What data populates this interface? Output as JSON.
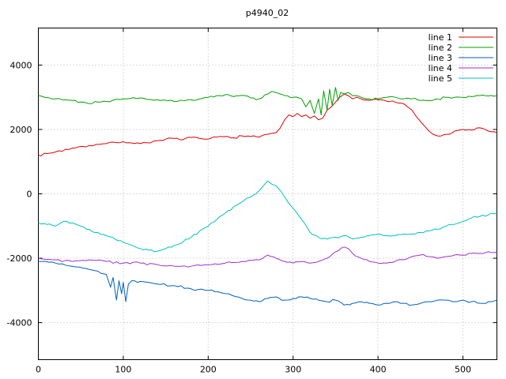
{
  "chart_data": {
    "type": "line",
    "title": "p4940_02",
    "xlabel": "",
    "ylabel": "",
    "xlim": [
      0,
      540
    ],
    "ylim": [
      -5150,
      5150
    ],
    "x_ticks": [
      0,
      100,
      200,
      300,
      400,
      500
    ],
    "y_ticks": [
      -4000,
      -2000,
      0,
      2000,
      4000
    ],
    "grid": true,
    "legend_position": "top-right",
    "background": "#ffffff",
    "grid_color": "#b4b4b4",
    "border_color": "#000000",
    "series": [
      {
        "name": "line 1",
        "color": "#dd0000",
        "noise": 40,
        "points": [
          [
            0,
            1200
          ],
          [
            10,
            1250
          ],
          [
            20,
            1300
          ],
          [
            40,
            1420
          ],
          [
            60,
            1500
          ],
          [
            80,
            1560
          ],
          [
            100,
            1620
          ],
          [
            110,
            1580
          ],
          [
            120,
            1560
          ],
          [
            140,
            1650
          ],
          [
            150,
            1700
          ],
          [
            160,
            1720
          ],
          [
            170,
            1680
          ],
          [
            180,
            1750
          ],
          [
            190,
            1720
          ],
          [
            200,
            1700
          ],
          [
            210,
            1760
          ],
          [
            220,
            1780
          ],
          [
            230,
            1740
          ],
          [
            240,
            1800
          ],
          [
            250,
            1780
          ],
          [
            260,
            1760
          ],
          [
            270,
            1850
          ],
          [
            280,
            1900
          ],
          [
            285,
            2050
          ],
          [
            290,
            2300
          ],
          [
            295,
            2450
          ],
          [
            300,
            2400
          ],
          [
            305,
            2500
          ],
          [
            310,
            2400
          ],
          [
            315,
            2450
          ],
          [
            320,
            2350
          ],
          [
            325,
            2420
          ],
          [
            330,
            2300
          ],
          [
            335,
            2350
          ],
          [
            340,
            2600
          ],
          [
            345,
            2700
          ],
          [
            350,
            2850
          ],
          [
            355,
            3000
          ],
          [
            360,
            3100
          ],
          [
            365,
            3050
          ],
          [
            370,
            2950
          ],
          [
            375,
            3000
          ],
          [
            380,
            2950
          ],
          [
            390,
            2900
          ],
          [
            400,
            2920
          ],
          [
            410,
            2880
          ],
          [
            420,
            2850
          ],
          [
            430,
            2800
          ],
          [
            435,
            2700
          ],
          [
            440,
            2600
          ],
          [
            445,
            2400
          ],
          [
            450,
            2250
          ],
          [
            455,
            2100
          ],
          [
            460,
            1950
          ],
          [
            465,
            1850
          ],
          [
            470,
            1800
          ],
          [
            480,
            1850
          ],
          [
            490,
            1950
          ],
          [
            500,
            2000
          ],
          [
            510,
            1980
          ],
          [
            520,
            2050
          ],
          [
            530,
            1950
          ],
          [
            540,
            1900
          ]
        ]
      },
      {
        "name": "line 2",
        "color": "#00a000",
        "noise": 45,
        "points": [
          [
            0,
            3050
          ],
          [
            20,
            2950
          ],
          [
            40,
            2900
          ],
          [
            50,
            2850
          ],
          [
            60,
            2800
          ],
          [
            70,
            2850
          ],
          [
            80,
            2870
          ],
          [
            100,
            2950
          ],
          [
            120,
            2980
          ],
          [
            140,
            2920
          ],
          [
            160,
            2870
          ],
          [
            180,
            2920
          ],
          [
            200,
            3000
          ],
          [
            210,
            3050
          ],
          [
            220,
            3080
          ],
          [
            230,
            3020
          ],
          [
            240,
            3060
          ],
          [
            250,
            2980
          ],
          [
            260,
            2950
          ],
          [
            270,
            3100
          ],
          [
            275,
            3180
          ],
          [
            280,
            3150
          ],
          [
            290,
            3050
          ],
          [
            300,
            3000
          ],
          [
            310,
            2950
          ],
          [
            315,
            2700
          ],
          [
            320,
            2900
          ],
          [
            325,
            2500
          ],
          [
            330,
            2950
          ],
          [
            333,
            2450
          ],
          [
            336,
            3200
          ],
          [
            340,
            2600
          ],
          [
            343,
            3250
          ],
          [
            346,
            2750
          ],
          [
            350,
            3300
          ],
          [
            353,
            2900
          ],
          [
            356,
            3150
          ],
          [
            360,
            3100
          ],
          [
            365,
            3150
          ],
          [
            370,
            3050
          ],
          [
            380,
            3000
          ],
          [
            390,
            2950
          ],
          [
            400,
            2950
          ],
          [
            410,
            3000
          ],
          [
            420,
            3000
          ],
          [
            430,
            2950
          ],
          [
            440,
            2950
          ],
          [
            450,
            2900
          ],
          [
            460,
            2900
          ],
          [
            470,
            2950
          ],
          [
            480,
            3000
          ],
          [
            490,
            3000
          ],
          [
            500,
            3000
          ],
          [
            510,
            3020
          ],
          [
            520,
            3050
          ],
          [
            530,
            3040
          ],
          [
            540,
            3050
          ]
        ]
      },
      {
        "name": "line 3",
        "color": "#0060c0",
        "noise": 45,
        "points": [
          [
            0,
            -2100
          ],
          [
            20,
            -2150
          ],
          [
            40,
            -2250
          ],
          [
            60,
            -2350
          ],
          [
            70,
            -2400
          ],
          [
            80,
            -2500
          ],
          [
            85,
            -2900
          ],
          [
            88,
            -2600
          ],
          [
            92,
            -3300
          ],
          [
            95,
            -2700
          ],
          [
            98,
            -3100
          ],
          [
            100,
            -2750
          ],
          [
            103,
            -3350
          ],
          [
            106,
            -2800
          ],
          [
            110,
            -2700
          ],
          [
            120,
            -2720
          ],
          [
            130,
            -2750
          ],
          [
            140,
            -2800
          ],
          [
            160,
            -2850
          ],
          [
            180,
            -2950
          ],
          [
            200,
            -3000
          ],
          [
            220,
            -3100
          ],
          [
            240,
            -3250
          ],
          [
            250,
            -3300
          ],
          [
            260,
            -3350
          ],
          [
            270,
            -3250
          ],
          [
            280,
            -3200
          ],
          [
            290,
            -3300
          ],
          [
            300,
            -3250
          ],
          [
            310,
            -3200
          ],
          [
            320,
            -3250
          ],
          [
            330,
            -3300
          ],
          [
            340,
            -3350
          ],
          [
            350,
            -3300
          ],
          [
            360,
            -3450
          ],
          [
            370,
            -3400
          ],
          [
            380,
            -3350
          ],
          [
            390,
            -3400
          ],
          [
            400,
            -3450
          ],
          [
            410,
            -3400
          ],
          [
            420,
            -3350
          ],
          [
            430,
            -3400
          ],
          [
            440,
            -3450
          ],
          [
            450,
            -3400
          ],
          [
            460,
            -3350
          ],
          [
            470,
            -3300
          ],
          [
            480,
            -3300
          ],
          [
            490,
            -3350
          ],
          [
            500,
            -3300
          ],
          [
            510,
            -3350
          ],
          [
            520,
            -3400
          ],
          [
            530,
            -3350
          ],
          [
            540,
            -3300
          ]
        ]
      },
      {
        "name": "line 4",
        "color": "#a030d0",
        "noise": 40,
        "points": [
          [
            0,
            -2000
          ],
          [
            20,
            -2050
          ],
          [
            40,
            -2100
          ],
          [
            60,
            -2050
          ],
          [
            80,
            -2100
          ],
          [
            100,
            -2150
          ],
          [
            120,
            -2150
          ],
          [
            140,
            -2200
          ],
          [
            160,
            -2250
          ],
          [
            180,
            -2250
          ],
          [
            200,
            -2200
          ],
          [
            220,
            -2150
          ],
          [
            240,
            -2100
          ],
          [
            260,
            -2050
          ],
          [
            270,
            -1900
          ],
          [
            280,
            -2000
          ],
          [
            290,
            -2100
          ],
          [
            300,
            -2150
          ],
          [
            310,
            -2100
          ],
          [
            320,
            -2150
          ],
          [
            330,
            -2100
          ],
          [
            340,
            -2000
          ],
          [
            350,
            -1800
          ],
          [
            360,
            -1650
          ],
          [
            365,
            -1700
          ],
          [
            370,
            -1850
          ],
          [
            380,
            -2000
          ],
          [
            390,
            -2100
          ],
          [
            400,
            -2150
          ],
          [
            410,
            -2150
          ],
          [
            420,
            -2100
          ],
          [
            430,
            -2050
          ],
          [
            440,
            -1950
          ],
          [
            450,
            -1900
          ],
          [
            460,
            -1950
          ],
          [
            470,
            -2000
          ],
          [
            480,
            -1950
          ],
          [
            490,
            -1900
          ],
          [
            500,
            -1900
          ],
          [
            510,
            -1850
          ],
          [
            520,
            -1850
          ],
          [
            530,
            -1800
          ],
          [
            540,
            -1800
          ]
        ]
      },
      {
        "name": "line 5",
        "color": "#00c0c0",
        "noise": 45,
        "points": [
          [
            0,
            -900
          ],
          [
            10,
            -950
          ],
          [
            20,
            -1000
          ],
          [
            30,
            -850
          ],
          [
            40,
            -900
          ],
          [
            50,
            -1000
          ],
          [
            60,
            -1100
          ],
          [
            70,
            -1200
          ],
          [
            80,
            -1300
          ],
          [
            90,
            -1400
          ],
          [
            100,
            -1500
          ],
          [
            110,
            -1600
          ],
          [
            120,
            -1700
          ],
          [
            130,
            -1750
          ],
          [
            140,
            -1780
          ],
          [
            150,
            -1700
          ],
          [
            160,
            -1600
          ],
          [
            170,
            -1500
          ],
          [
            180,
            -1350
          ],
          [
            190,
            -1150
          ],
          [
            200,
            -1000
          ],
          [
            210,
            -800
          ],
          [
            220,
            -600
          ],
          [
            230,
            -400
          ],
          [
            240,
            -250
          ],
          [
            250,
            -100
          ],
          [
            260,
            100
          ],
          [
            265,
            250
          ],
          [
            270,
            400
          ],
          [
            275,
            300
          ],
          [
            280,
            250
          ],
          [
            285,
            100
          ],
          [
            290,
            -100
          ],
          [
            295,
            -300
          ],
          [
            300,
            -450
          ],
          [
            310,
            -800
          ],
          [
            320,
            -1200
          ],
          [
            330,
            -1350
          ],
          [
            340,
            -1400
          ],
          [
            350,
            -1350
          ],
          [
            360,
            -1300
          ],
          [
            370,
            -1400
          ],
          [
            380,
            -1350
          ],
          [
            390,
            -1300
          ],
          [
            400,
            -1250
          ],
          [
            410,
            -1300
          ],
          [
            420,
            -1300
          ],
          [
            430,
            -1250
          ],
          [
            440,
            -1250
          ],
          [
            450,
            -1200
          ],
          [
            460,
            -1150
          ],
          [
            470,
            -1100
          ],
          [
            480,
            -1000
          ],
          [
            490,
            -950
          ],
          [
            500,
            -850
          ],
          [
            510,
            -750
          ],
          [
            520,
            -700
          ],
          [
            530,
            -650
          ],
          [
            540,
            -600
          ]
        ]
      }
    ]
  }
}
